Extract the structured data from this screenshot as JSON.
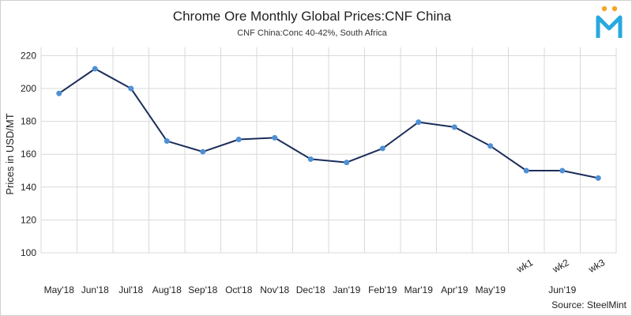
{
  "chart_data": {
    "type": "line",
    "title": "Chrome Ore Monthly Global Prices:CNF China",
    "subtitle": "CNF China:Conc 40-42%, South Africa",
    "ylabel": "Prices in USD/MT",
    "xlabel": "",
    "ylim": [
      100,
      225
    ],
    "yticks": [
      100,
      120,
      140,
      160,
      180,
      200,
      220
    ],
    "grid": true,
    "legend": "none",
    "categories": [
      "May'18",
      "Jun'18",
      "Jul'18",
      "Aug'18",
      "Sep'18",
      "Oct'18",
      "Nov'18",
      "Dec'18",
      "Jan'19",
      "Feb'19",
      "Mar'19",
      "Apr'19",
      "May'19",
      "wk1",
      "wk2",
      "wk3"
    ],
    "group_label": "Jun'19",
    "series": [
      {
        "values": [
          197,
          212,
          200,
          168,
          161.5,
          169,
          170,
          157,
          155,
          163.5,
          179.5,
          176.5,
          165,
          150,
          150,
          145.5
        ]
      }
    ],
    "colors": {
      "line": "#1b2e5a",
      "marker": "#4e90d6",
      "grid": "#d9d9d9"
    },
    "source": "Source: SteelMint"
  }
}
